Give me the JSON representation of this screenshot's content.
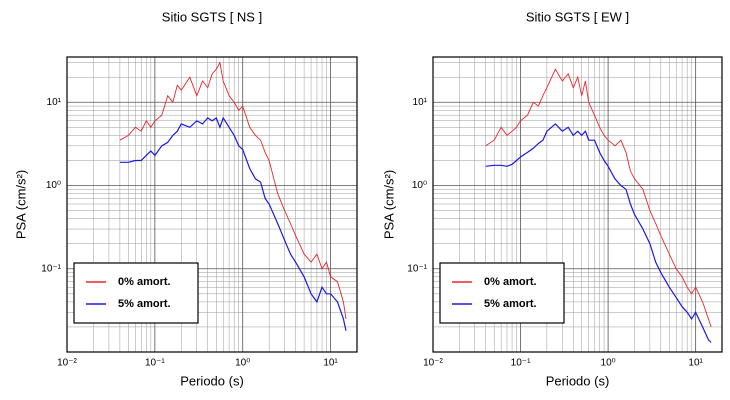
{
  "chart_data": [
    {
      "type": "line",
      "title": "Sitio SGTS [ NS ]",
      "x_label": "Periodo (s)",
      "y_label": "PSA (cm/s²)",
      "x_scale": "log",
      "y_scale": "log",
      "grid": true,
      "minor_grid": true,
      "legend": "lower left",
      "xlim": [
        0.01,
        20
      ],
      "ylim": [
        0.01,
        35
      ],
      "xticks": [
        {
          "value": 0.01,
          "label": "10⁻²"
        },
        {
          "value": 0.1,
          "label": "10⁻¹"
        },
        {
          "value": 1,
          "label": "10⁰"
        },
        {
          "value": 10,
          "label": "10¹"
        }
      ],
      "yticks": [
        {
          "value": 0.1,
          "label": "10⁻¹"
        },
        {
          "value": 1,
          "label": "10⁰"
        },
        {
          "value": 10,
          "label": "10¹"
        }
      ],
      "x": [
        0.04,
        0.05,
        0.06,
        0.07,
        0.08,
        0.09,
        0.1,
        0.12,
        0.14,
        0.16,
        0.18,
        0.2,
        0.25,
        0.3,
        0.35,
        0.4,
        0.45,
        0.5,
        0.55,
        0.6,
        0.7,
        0.8,
        0.9,
        1,
        1.2,
        1.4,
        1.6,
        1.8,
        2,
        2.5,
        3,
        3.5,
        4,
        5,
        6,
        7,
        8,
        9,
        10,
        12,
        14,
        15
      ],
      "series": [
        {
          "name": "0% amort.",
          "color": "#e8262a",
          "values": [
            3.5,
            4,
            5,
            4.5,
            6,
            5,
            6,
            7,
            12,
            10,
            16,
            14,
            20,
            12,
            18,
            15,
            22,
            25,
            30,
            18,
            12,
            10,
            8,
            9,
            5,
            4,
            3.5,
            2.5,
            2,
            0.8,
            0.5,
            0.35,
            0.25,
            0.15,
            0.12,
            0.15,
            0.1,
            0.12,
            0.08,
            0.07,
            0.04,
            0.025
          ]
        },
        {
          "name": "5% amort.",
          "color": "#1a1ae0",
          "values": [
            1.9,
            1.9,
            2,
            2,
            2.3,
            2.6,
            2.3,
            3,
            3.3,
            4,
            4.5,
            5.5,
            5,
            6,
            5.5,
            6.5,
            6,
            6.5,
            5,
            6.5,
            5,
            4,
            3,
            2.7,
            1.6,
            1.2,
            1.1,
            0.7,
            0.6,
            0.35,
            0.22,
            0.15,
            0.12,
            0.08,
            0.05,
            0.04,
            0.06,
            0.05,
            0.05,
            0.04,
            0.025,
            0.018
          ]
        }
      ]
    },
    {
      "type": "line",
      "title": "Sitio SGTS [ EW ]",
      "x_label": "Periodo (s)",
      "y_label": "PSA (cm/s²)",
      "x_scale": "log",
      "y_scale": "log",
      "grid": true,
      "minor_grid": true,
      "legend": "lower left",
      "xlim": [
        0.01,
        20
      ],
      "ylim": [
        0.01,
        35
      ],
      "xticks": [
        {
          "value": 0.01,
          "label": "10⁻²"
        },
        {
          "value": 0.1,
          "label": "10⁻¹"
        },
        {
          "value": 1,
          "label": "10⁰"
        },
        {
          "value": 10,
          "label": "10¹"
        }
      ],
      "yticks": [
        {
          "value": 0.1,
          "label": "10⁻¹"
        },
        {
          "value": 1,
          "label": "10⁰"
        },
        {
          "value": 10,
          "label": "10¹"
        }
      ],
      "x": [
        0.04,
        0.05,
        0.06,
        0.07,
        0.08,
        0.09,
        0.1,
        0.12,
        0.14,
        0.16,
        0.18,
        0.2,
        0.25,
        0.3,
        0.35,
        0.4,
        0.45,
        0.5,
        0.55,
        0.6,
        0.7,
        0.8,
        0.9,
        1,
        1.2,
        1.4,
        1.6,
        1.8,
        2,
        2.5,
        3,
        3.5,
        4,
        5,
        6,
        7,
        8,
        9,
        10,
        12,
        14,
        15
      ],
      "series": [
        {
          "name": "0% amort.",
          "color": "#e8262a",
          "values": [
            3,
            3.5,
            5,
            4,
            4.5,
            5,
            6,
            7,
            10,
            9,
            12,
            15,
            25,
            18,
            22,
            15,
            20,
            12,
            18,
            10,
            7,
            5,
            4,
            3.5,
            3,
            3.5,
            2.5,
            1.5,
            1.2,
            0.9,
            0.5,
            0.35,
            0.25,
            0.15,
            0.1,
            0.08,
            0.06,
            0.05,
            0.06,
            0.04,
            0.025,
            0.02
          ]
        },
        {
          "name": "5% amort.",
          "color": "#1a1ae0",
          "values": [
            1.7,
            1.75,
            1.75,
            1.7,
            1.8,
            2,
            2.2,
            2.5,
            2.8,
            3.2,
            3.5,
            4.5,
            5.5,
            4.5,
            5,
            4,
            4.5,
            4,
            4.5,
            3.5,
            3.5,
            2.5,
            2,
            1.7,
            1.2,
            1,
            0.9,
            0.6,
            0.45,
            0.3,
            0.2,
            0.12,
            0.09,
            0.06,
            0.045,
            0.035,
            0.03,
            0.025,
            0.03,
            0.02,
            0.014,
            0.013
          ]
        }
      ]
    }
  ]
}
